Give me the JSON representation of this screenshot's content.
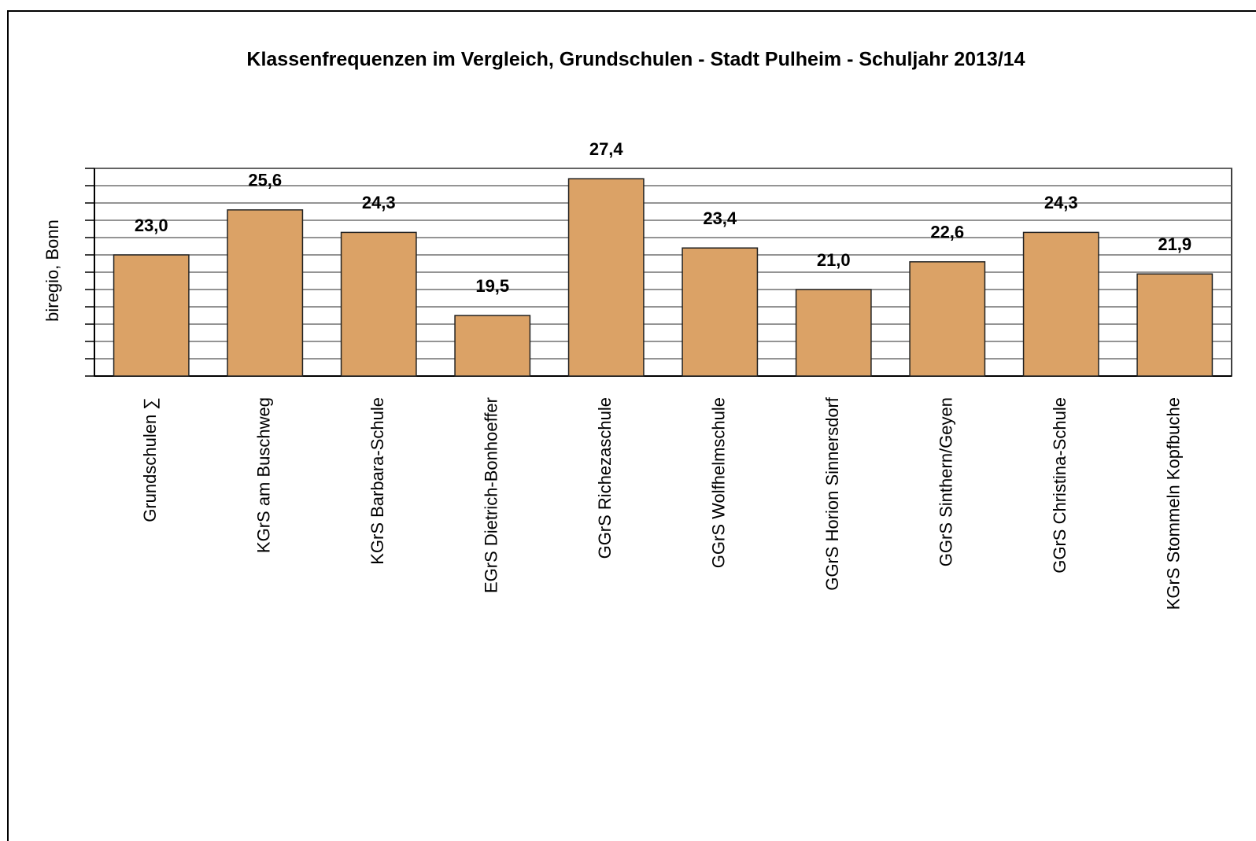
{
  "chart_data": {
    "type": "bar",
    "title": "Klassenfrequenzen im Vergleich, Grundschulen - Stadt Pulheim - Schuljahr 2013/14",
    "y_label": "biregio, Bonn",
    "categories": [
      "Grundschulen ∑",
      "KGrS am Buschweg",
      "KGrS Barbara-Schule",
      "EGrS Dietrich-Bonhoeffer",
      "GGrS Richezaschule",
      "GGrS Wolfhelmschule",
      "GGrS Horion Sinnersdorf",
      "GGrS Sinthern/Geyen",
      "GGrS Christina-Schule",
      "KGrS Stommeln Kopfbuche"
    ],
    "values": [
      23.0,
      25.6,
      24.3,
      19.5,
      27.4,
      23.4,
      21.0,
      22.6,
      24.3,
      21.9
    ],
    "value_labels": [
      "23,0",
      "25,6",
      "24,3",
      "19,5",
      "27,4",
      "23,4",
      "21,0",
      "22,6",
      "24,3",
      "21,9"
    ],
    "color": "#dba266",
    "ylim": [
      16,
      28
    ],
    "yticks": [
      16,
      17,
      18,
      19,
      20,
      21,
      22,
      23,
      24,
      25,
      26,
      27,
      28
    ],
    "grid": true
  }
}
